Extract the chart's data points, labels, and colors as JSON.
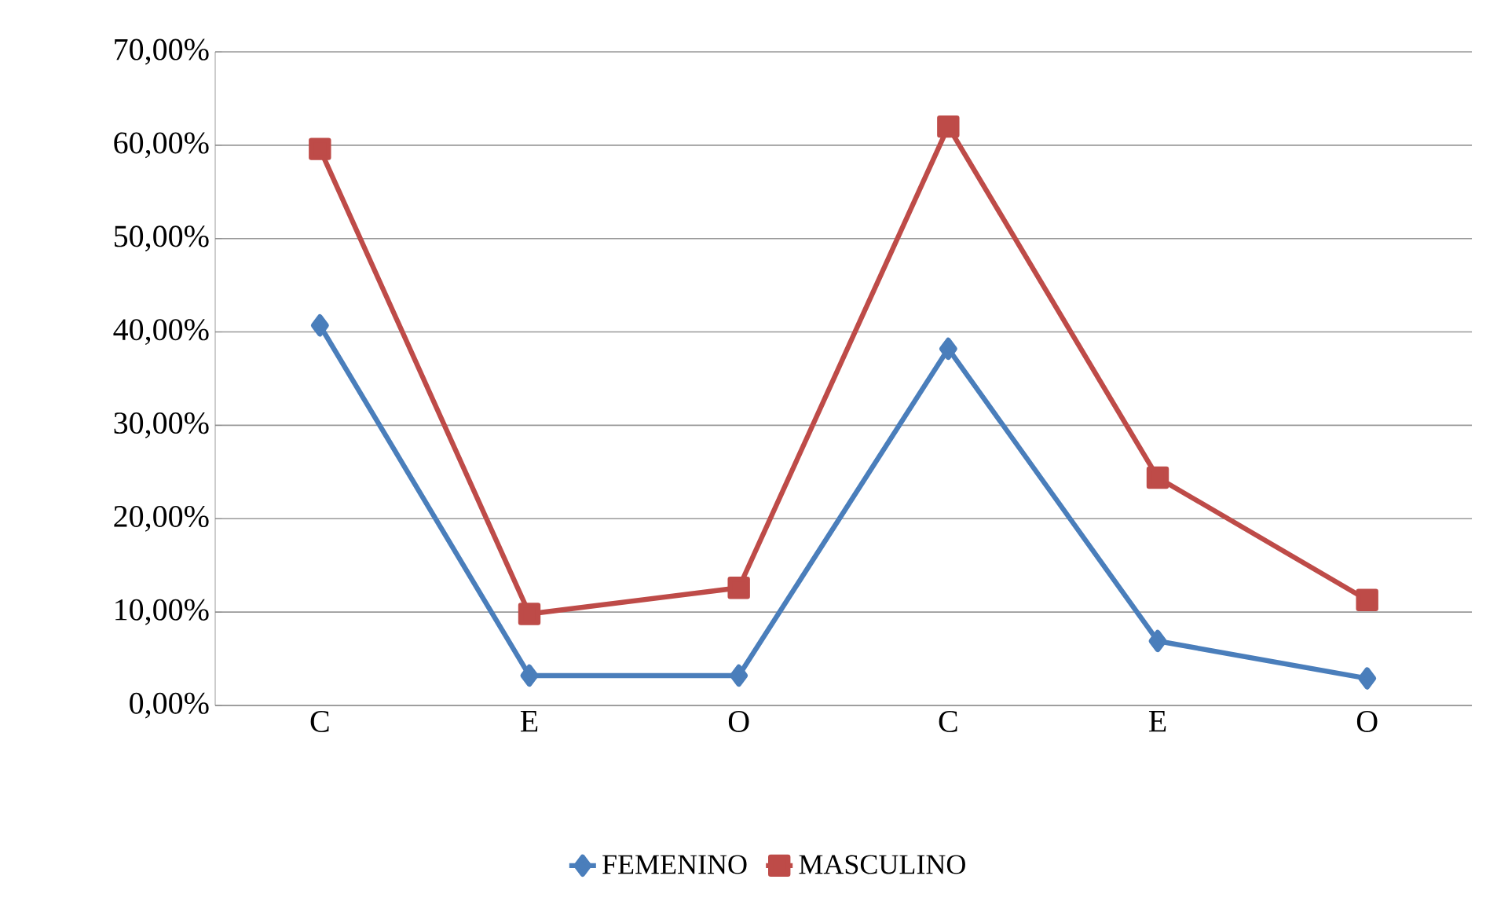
{
  "chart_data": {
    "type": "line",
    "categories": [
      "C",
      "E",
      "O",
      "C",
      "E",
      "O"
    ],
    "series": [
      {
        "name": "FEMENINO",
        "color": "#4a7ebb",
        "marker": "diamond",
        "values": [
          40.7,
          3.2,
          3.2,
          38.2,
          6.9,
          2.9
        ]
      },
      {
        "name": "MASCULINO",
        "color": "#be4b48",
        "marker": "square",
        "values": [
          59.6,
          9.8,
          12.6,
          62.0,
          24.4,
          11.3
        ]
      }
    ],
    "ylim": [
      0,
      70
    ],
    "yticks": [
      {
        "value": 0,
        "label": "0,00%"
      },
      {
        "value": 10,
        "label": "10,00%"
      },
      {
        "value": 20,
        "label": "20,00%"
      },
      {
        "value": 30,
        "label": "30,00%"
      },
      {
        "value": 40,
        "label": "40,00%"
      },
      {
        "value": 50,
        "label": "50,00%"
      },
      {
        "value": 60,
        "label": "60,00%"
      },
      {
        "value": 70,
        "label": "70,00%"
      }
    ],
    "grid": "y",
    "legend": "bottom",
    "line_style": "solid"
  }
}
